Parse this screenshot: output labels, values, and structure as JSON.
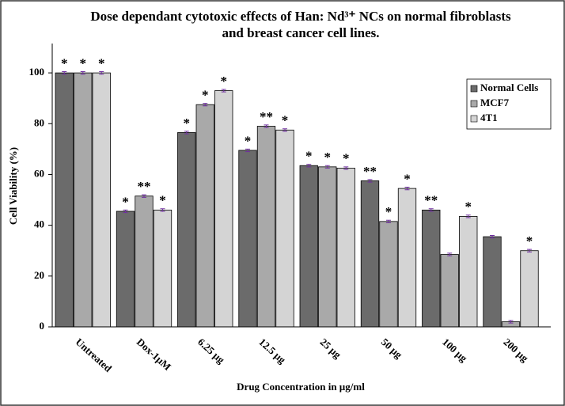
{
  "chart_data": {
    "type": "bar",
    "title": [
      "Dose dependant cytotoxic effects of Han: Nd³⁺ NCs on normal fibroblasts",
      "and breast cancer cell lines."
    ],
    "x_label": "Drug Concentration in µg/ml",
    "y_label": "Cell Viability (%)",
    "categories": [
      "Untreated",
      "Dox-1µM",
      "6.25 µg",
      "12.5 µg",
      "25 µg",
      "50 µg",
      "100 µg",
      "200 µg"
    ],
    "series": [
      {
        "name": "Normal Cells",
        "color": "#6b6b6b",
        "values": [
          100,
          45.5,
          76.5,
          69.5,
          63.5,
          57.5,
          46,
          35.5
        ],
        "errors": [
          0.5,
          0.5,
          0.5,
          0.5,
          0.5,
          0.5,
          0.5,
          0.5
        ],
        "annotations": [
          "*",
          "*",
          "*",
          "*",
          "*",
          "**",
          "**",
          null
        ]
      },
      {
        "name": "MCF7",
        "color": "#a9a9a9",
        "values": [
          100,
          51.5,
          87.5,
          79,
          63,
          41.5,
          28.5,
          2
        ],
        "errors": [
          0.5,
          0.5,
          0.5,
          0.5,
          0.5,
          0.5,
          0.5,
          0.5
        ],
        "annotations": [
          "*",
          "**",
          "*",
          "**",
          "*",
          "*",
          null,
          null
        ]
      },
      {
        "name": "4T1",
        "color": "#d4d4d4",
        "values": [
          100,
          46,
          93,
          77.5,
          62.5,
          54.5,
          43.5,
          30
        ],
        "errors": [
          0.5,
          0.5,
          0.5,
          0.5,
          0.5,
          0.5,
          0.5,
          0.5
        ],
        "annotations": [
          "*",
          "*",
          "*",
          "*",
          "*",
          "*",
          "*",
          "*"
        ]
      }
    ],
    "ylim": [
      0,
      110
    ],
    "yticks": [
      0,
      20,
      40,
      60,
      80,
      100
    ],
    "grid": false,
    "legend": "upper right"
  }
}
